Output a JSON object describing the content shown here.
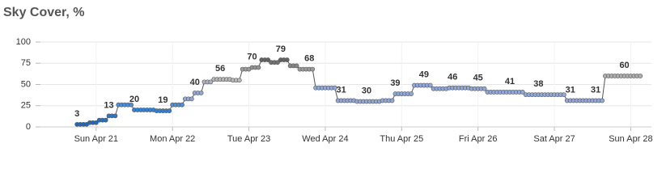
{
  "chart_data": {
    "type": "line",
    "title": "Sky Cover, %",
    "x": [
      -6,
      -5,
      -4,
      -3,
      -2,
      -1,
      0,
      1,
      2,
      3,
      4,
      5,
      6,
      7,
      8,
      9,
      10,
      11,
      12,
      13,
      14,
      15,
      16,
      17,
      18,
      19,
      20,
      21,
      22,
      23,
      24,
      25,
      26,
      27,
      28,
      29,
      30,
      31,
      32,
      33,
      34,
      35,
      36,
      37,
      38,
      39,
      40,
      41,
      42,
      43,
      44,
      45,
      46,
      47,
      48,
      49,
      50,
      51,
      52,
      53,
      54,
      55,
      56,
      57,
      58,
      59,
      60,
      61,
      62,
      63,
      64,
      65,
      66,
      67,
      68,
      69,
      70,
      71,
      72,
      73,
      74,
      75,
      76,
      77,
      78,
      79,
      80,
      81,
      82,
      83,
      84,
      85,
      86,
      87,
      88,
      89,
      90,
      91,
      92,
      93,
      94,
      95,
      96,
      97,
      98,
      99,
      100,
      101,
      102,
      103,
      104,
      105,
      106,
      107,
      108,
      109,
      110,
      111,
      112,
      113,
      114,
      115,
      116,
      117,
      118,
      119,
      120,
      121,
      122,
      123,
      124,
      125,
      126,
      127,
      128,
      129,
      130,
      131,
      132,
      133,
      134,
      135,
      136,
      137,
      138,
      139,
      140,
      141,
      142,
      143,
      144,
      145,
      146,
      147,
      148,
      149,
      150,
      151,
      152,
      153,
      154,
      155,
      156,
      157,
      158,
      159,
      160,
      161,
      162,
      163,
      164,
      165,
      166,
      167,
      168,
      169,
      170,
      171
    ],
    "values": [
      3,
      3,
      3,
      3,
      5,
      5,
      5,
      8,
      8,
      8,
      13,
      13,
      13,
      26,
      26,
      26,
      26,
      26,
      20,
      20,
      20,
      20,
      20,
      20,
      20,
      19,
      19,
      19,
      19,
      19,
      26,
      26,
      26,
      26,
      33,
      33,
      33,
      40,
      40,
      40,
      53,
      53,
      53,
      56,
      56,
      56,
      56,
      56,
      56,
      55,
      55,
      55,
      68,
      68,
      68,
      70,
      70,
      70,
      79,
      79,
      79,
      76,
      76,
      76,
      79,
      79,
      79,
      72,
      72,
      72,
      68,
      68,
      68,
      68,
      68,
      46,
      46,
      46,
      46,
      46,
      46,
      46,
      31,
      31,
      31,
      31,
      31,
      31,
      30,
      30,
      30,
      30,
      30,
      30,
      30,
      30,
      31,
      31,
      31,
      31,
      39,
      39,
      39,
      39,
      39,
      39,
      49,
      49,
      49,
      49,
      49,
      49,
      45,
      45,
      45,
      45,
      45,
      46,
      46,
      46,
      46,
      46,
      46,
      46,
      45,
      45,
      45,
      45,
      45,
      41,
      41,
      41,
      41,
      41,
      41,
      41,
      41,
      41,
      41,
      41,
      41,
      38,
      38,
      38,
      38,
      38,
      38,
      38,
      38,
      38,
      38,
      38,
      38,
      38,
      31,
      31,
      31,
      31,
      31,
      31,
      31,
      31,
      31,
      31,
      31,
      31,
      60,
      60,
      60,
      60,
      60,
      60,
      60,
      60,
      60,
      60,
      60,
      60
    ],
    "data_label_indices": [
      0,
      10,
      18,
      27,
      37,
      45,
      55,
      64,
      73,
      83,
      91,
      100,
      109,
      118,
      126,
      136,
      145,
      155,
      163,
      172
    ],
    "xlim": [
      -17.5,
      174.5
    ],
    "xticks": [
      {
        "value": 0,
        "label": "Sun Apr 21"
      },
      {
        "value": 24,
        "label": "Mon Apr 22"
      },
      {
        "value": 48,
        "label": "Tue Apr 23"
      },
      {
        "value": 72,
        "label": "Wed Apr 24"
      },
      {
        "value": 96,
        "label": "Thu Apr 25"
      },
      {
        "value": 120,
        "label": "Fri Apr 26"
      },
      {
        "value": 144,
        "label": "Sat Apr 27"
      },
      {
        "value": 168,
        "label": "Sun Apr 28"
      }
    ],
    "ylim": [
      0,
      100
    ],
    "yticks": [
      0,
      25,
      50,
      75,
      100
    ],
    "grid": true,
    "line_color": "#555555",
    "colorscale": [
      {
        "value": 0,
        "color": "#1565c0"
      },
      {
        "value": 25,
        "color": "#3d8ad6"
      },
      {
        "value": 30,
        "color": "#91a8da"
      },
      {
        "value": 49,
        "color": "#91a8da"
      },
      {
        "value": 55,
        "color": "#b9b9b9"
      },
      {
        "value": 68,
        "color": "#9c9c9c"
      },
      {
        "value": 80,
        "color": "#5e5e5e"
      }
    ]
  }
}
